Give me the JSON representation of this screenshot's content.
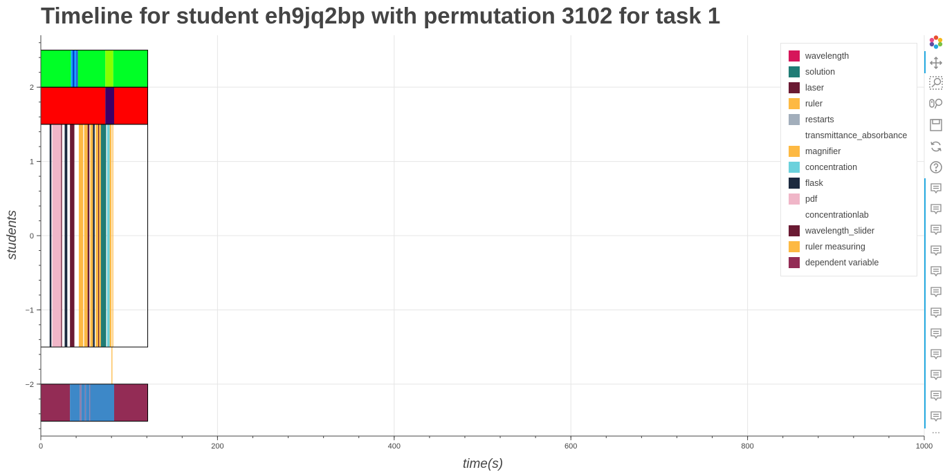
{
  "chart_data": {
    "type": "timeline",
    "title": "Timeline for student eh9jq2bp with permutation 3102 for task 1",
    "xlabel": "time(s)",
    "ylabel": "students",
    "xlim": [
      0,
      1000
    ],
    "ylim": [
      -2.7,
      2.7
    ],
    "x_ticks": [
      0,
      200,
      400,
      600,
      800,
      1000
    ],
    "y_ticks": [
      2,
      1,
      0,
      -1,
      -2
    ],
    "y_tick_labels": [
      "2",
      "1",
      "0",
      "−1",
      "−2"
    ],
    "grid": true,
    "legend_position": "top-right",
    "legend": [
      {
        "label": "wavelength",
        "color": "#d6165a"
      },
      {
        "label": "solution",
        "color": "#207c75"
      },
      {
        "label": "laser",
        "color": "#6a1a33"
      },
      {
        "label": "ruler",
        "color": "#fdb943"
      },
      {
        "label": "restarts",
        "color": "#a2aebb"
      },
      {
        "label": "transmittance_absorbance",
        "color": ""
      },
      {
        "label": "magnifier",
        "color": "#fdb943"
      },
      {
        "label": "concentration",
        "color": "#6bd1dc"
      },
      {
        "label": "flask",
        "color": "#1c2a3f"
      },
      {
        "label": "pdf",
        "color": "#f0b6c8"
      },
      {
        "label": "concentrationlab",
        "color": ""
      },
      {
        "label": "wavelength_slider",
        "color": "#6a1a33"
      },
      {
        "label": "ruler measuring",
        "color": "#fdb943"
      },
      {
        "label": "dependent variable",
        "color": "#932c55"
      }
    ],
    "rows": [
      {
        "y0": 2.0,
        "y1": 2.5,
        "outline": true,
        "outline_end": 121,
        "segments": [
          {
            "start": 0,
            "end": 34,
            "color": "#00ff26"
          },
          {
            "start": 34,
            "end": 36,
            "color": "#1aa3ff"
          },
          {
            "start": 36,
            "end": 38,
            "color": "#0044cc"
          },
          {
            "start": 38,
            "end": 40,
            "color": "#1aa3ff"
          },
          {
            "start": 40,
            "end": 42,
            "color": "#2255dd"
          },
          {
            "start": 42,
            "end": 73,
            "color": "#00ff26"
          },
          {
            "start": 73,
            "end": 82,
            "color": "#88ff00"
          },
          {
            "start": 82,
            "end": 121,
            "color": "#00ff26"
          }
        ]
      },
      {
        "y0": 1.5,
        "y1": 2.0,
        "outline": true,
        "outline_end": 121,
        "segments": [
          {
            "start": 0,
            "end": 73,
            "color": "#ff0000"
          },
          {
            "start": 73,
            "end": 83,
            "color": "#3d0066"
          },
          {
            "start": 83,
            "end": 121,
            "color": "#ff0000"
          }
        ]
      },
      {
        "y0": -1.5,
        "y1": 1.5,
        "outline": true,
        "outline_end": 121,
        "segments": [
          {
            "start": 10,
            "end": 12,
            "color": "#1c2a3f"
          },
          {
            "start": 13,
            "end": 23,
            "color": "#f0b6c8"
          },
          {
            "start": 23,
            "end": 24,
            "color": "#6a1a33"
          },
          {
            "start": 27,
            "end": 30,
            "color": "#1c2a3f"
          },
          {
            "start": 33,
            "end": 38,
            "color": "#6a1a33"
          },
          {
            "start": 43,
            "end": 48,
            "color": "#fdb943"
          },
          {
            "start": 49,
            "end": 53,
            "color": "#fdb943"
          },
          {
            "start": 53,
            "end": 55,
            "color": "#6a1a33"
          },
          {
            "start": 56,
            "end": 59,
            "color": "#fdb943"
          },
          {
            "start": 59,
            "end": 61,
            "color": "#1c2a3f"
          },
          {
            "start": 62,
            "end": 65,
            "color": "#fdb943"
          },
          {
            "start": 65,
            "end": 66,
            "color": "#6a1a33"
          },
          {
            "start": 66,
            "end": 68,
            "color": "#fdb943"
          },
          {
            "start": 68,
            "end": 74,
            "color": "#207c75"
          },
          {
            "start": 75,
            "end": 78,
            "color": "#6bd1dc"
          },
          {
            "start": 78,
            "end": 80,
            "color": "#fdb943"
          },
          {
            "start": 81,
            "end": 82,
            "color": "#fdb943"
          }
        ]
      },
      {
        "y0": -2.0,
        "y1": -1.5,
        "outline": false,
        "outline_end": 121,
        "segments": [
          {
            "start": 80,
            "end": 81,
            "color": "#fdb943"
          }
        ]
      },
      {
        "y0": -2.5,
        "y1": -2.0,
        "outline": true,
        "outline_end": 121,
        "segments": [
          {
            "start": 0,
            "end": 33,
            "color": "#932c55"
          },
          {
            "start": 33,
            "end": 44,
            "color": "#3d88c8"
          },
          {
            "start": 44,
            "end": 46,
            "color": "#8a7aa8"
          },
          {
            "start": 46,
            "end": 50,
            "color": "#3d88c8"
          },
          {
            "start": 50,
            "end": 51,
            "color": "#8a7aa8"
          },
          {
            "start": 51,
            "end": 55,
            "color": "#3d88c8"
          },
          {
            "start": 55,
            "end": 56,
            "color": "#8a7aa8"
          },
          {
            "start": 56,
            "end": 83,
            "color": "#3d88c8"
          },
          {
            "start": 83,
            "end": 121,
            "color": "#932c55"
          }
        ]
      }
    ]
  },
  "toolbar": [
    {
      "name": "bokeh-logo-icon"
    },
    {
      "name": "pan-icon"
    },
    {
      "name": "box-zoom-icon"
    },
    {
      "name": "wheel-zoom-icon"
    },
    {
      "name": "save-icon"
    },
    {
      "name": "reset-icon"
    },
    {
      "name": "help-icon"
    },
    {
      "name": "hover-icon",
      "count": 12
    },
    {
      "name": "more-icon"
    }
  ]
}
